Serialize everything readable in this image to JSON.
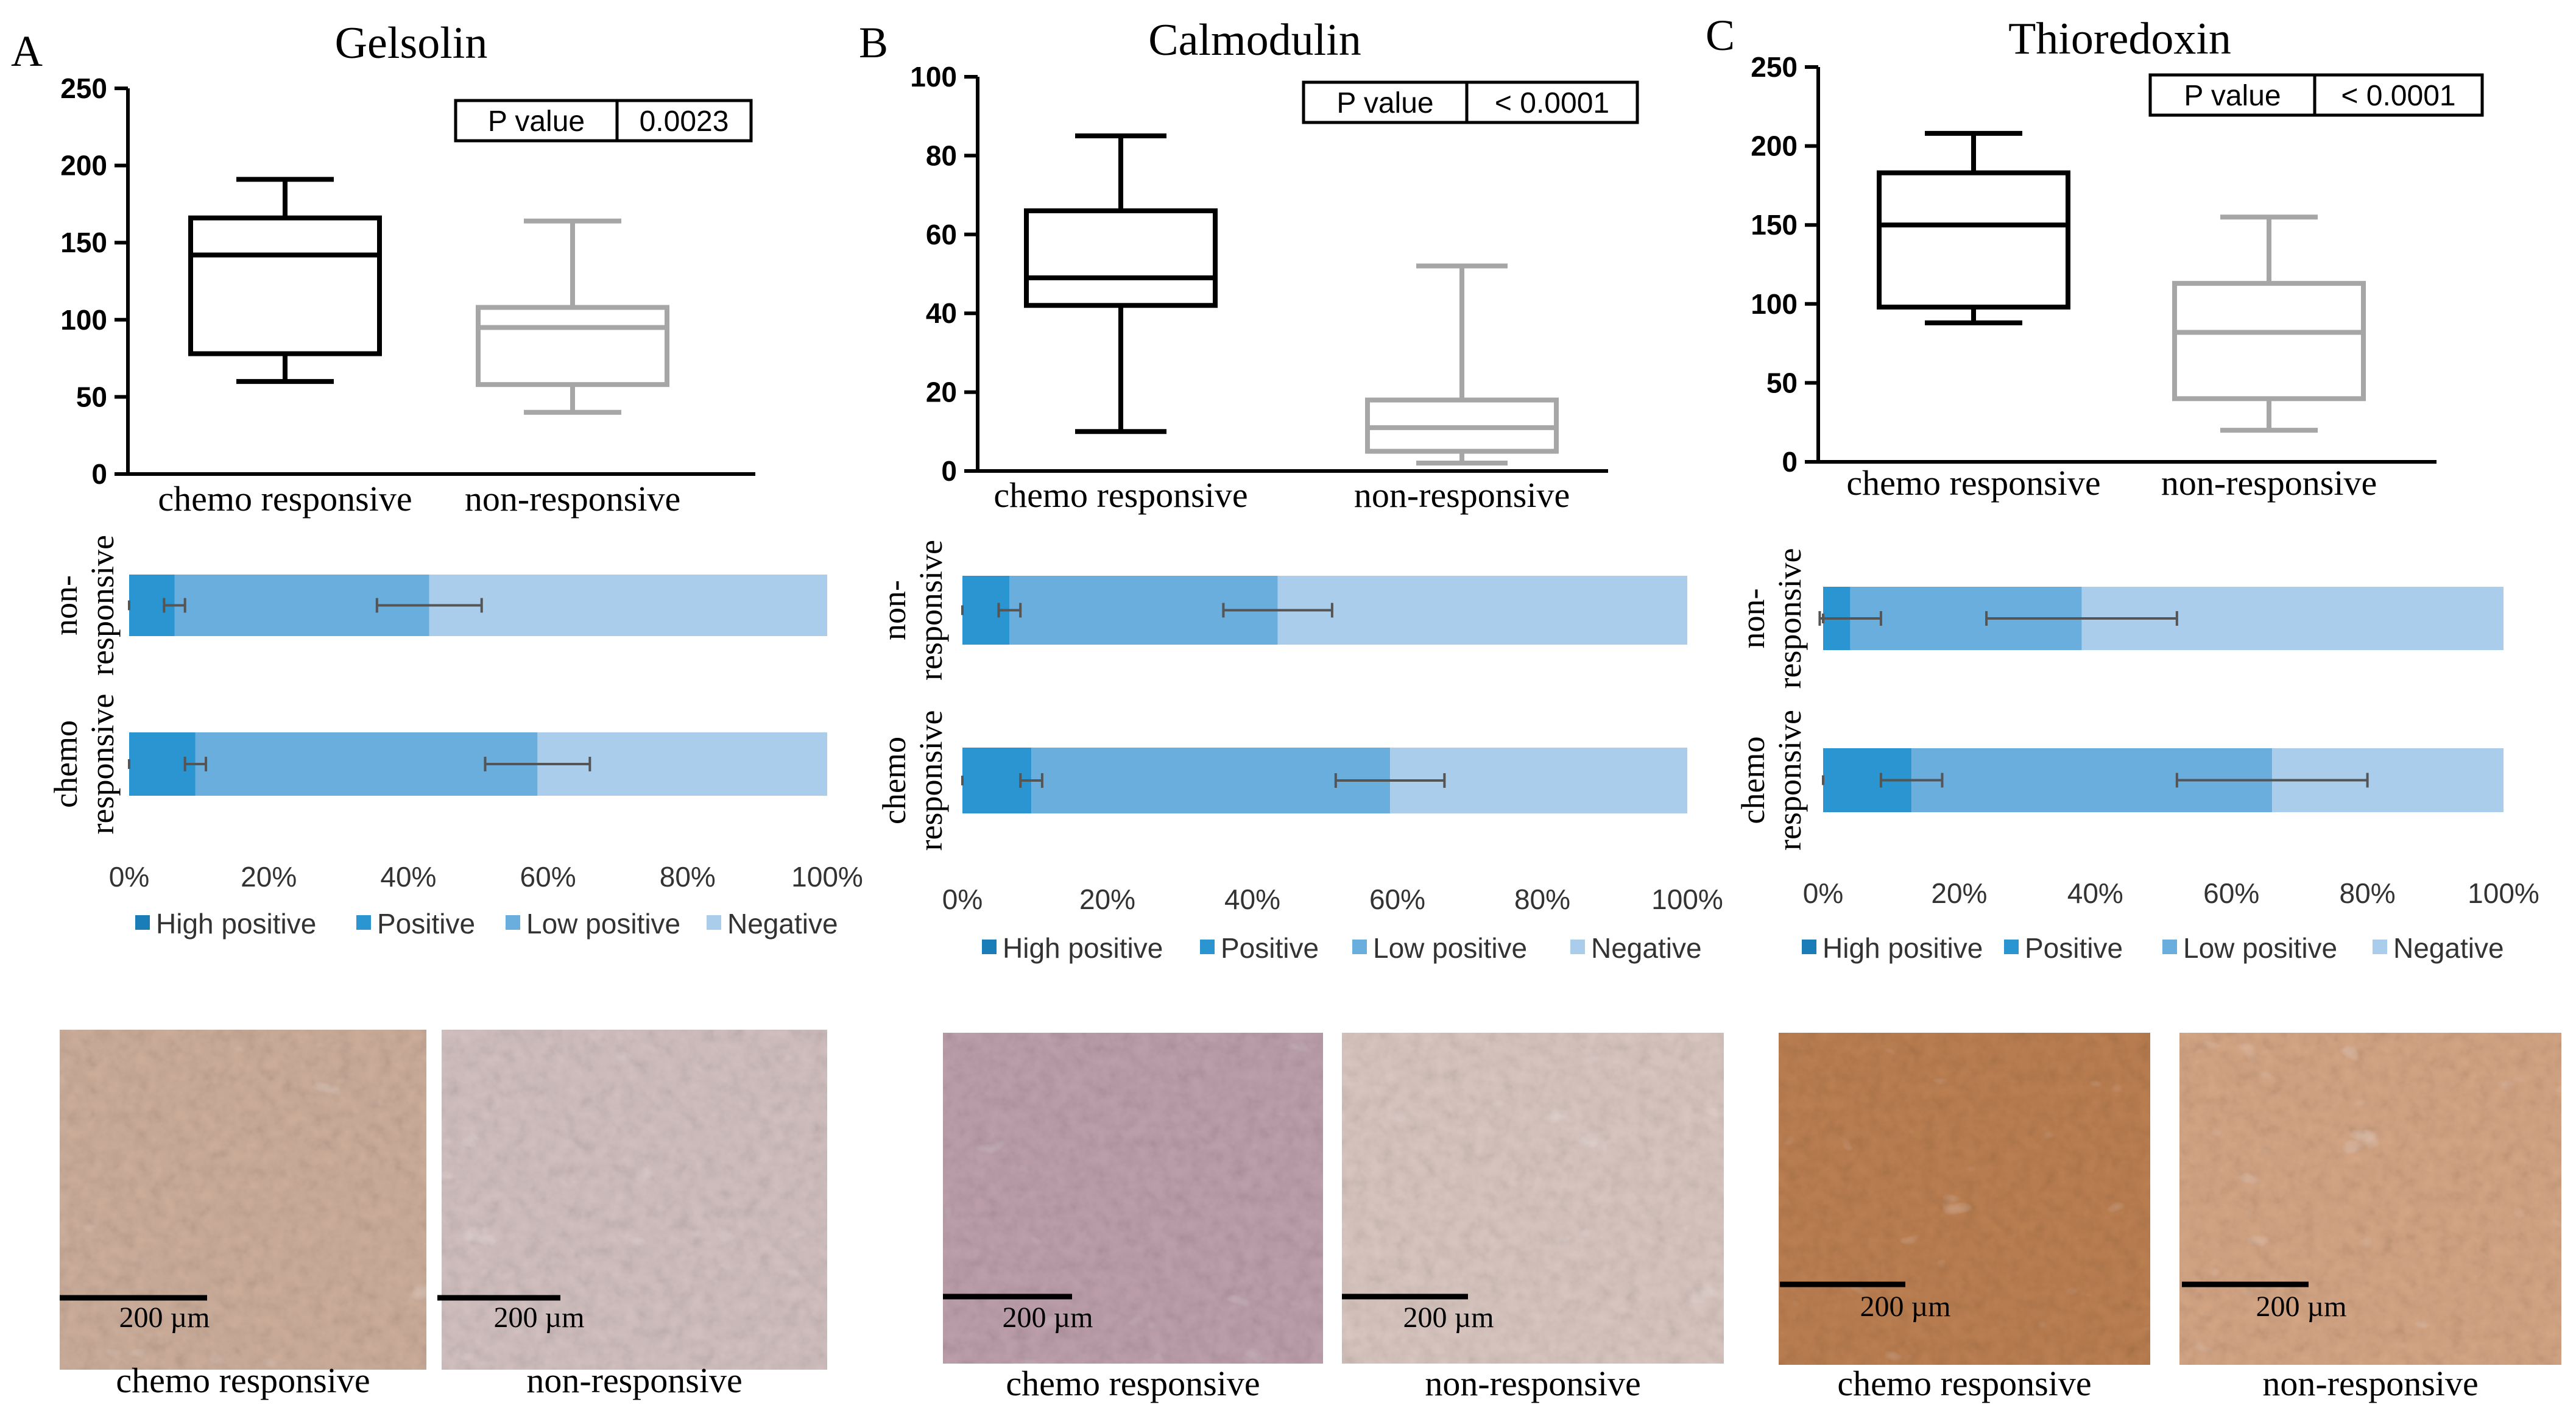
{
  "figure": {
    "scale_bar_label": "200 µm",
    "legend": {
      "items": [
        "High positive",
        "Positive",
        "Low positive",
        "Negative"
      ],
      "colors": [
        "#1a7db8",
        "#2a95d0",
        "#6aaede",
        "#aacdec"
      ]
    },
    "colors": {
      "responsive": "#000000",
      "nonresponsive": "#a6a6a6",
      "errorbar": "#555555"
    }
  },
  "chart_data": [
    {
      "panel": "A",
      "title": "Gelsolin",
      "type": "box",
      "ylim": [
        0,
        250
      ],
      "yticks": [
        0,
        50,
        100,
        150,
        200,
        250
      ],
      "categories": [
        "chemo responsive",
        "non-responsive"
      ],
      "boxes": [
        {
          "name": "chemo responsive",
          "min": 60,
          "q1": 78,
          "median": 142,
          "q3": 166,
          "max": 191
        },
        {
          "name": "non-responsive",
          "min": 40,
          "q1": 58,
          "median": 95,
          "q3": 108,
          "max": 164
        }
      ],
      "pvalue": {
        "label": "P value",
        "value": "0.0023"
      },
      "stacked_bar": {
        "type": "bar",
        "orientation": "horizontal",
        "stacked": true,
        "xticks": [
          "0%",
          "20%",
          "40%",
          "60%",
          "80%",
          "100%"
        ],
        "categories": [
          "non-responsive",
          "chemo responsive"
        ],
        "category_labels": [
          [
            "non-",
            "responsive"
          ],
          [
            "chemo",
            "responsive"
          ]
        ],
        "series": [
          {
            "name": "High positive",
            "values": [
              0,
              0
            ],
            "err": [
              0,
              0
            ]
          },
          {
            "name": "Positive",
            "values": [
              6.5,
              9.5
            ],
            "err": [
              1.5,
              1.5
            ]
          },
          {
            "name": "Low positive",
            "values": [
              36.5,
              49
            ],
            "err": [
              7.5,
              7.5
            ]
          },
          {
            "name": "Negative",
            "values": [
              57,
              41.5
            ],
            "err": [
              0,
              0
            ]
          }
        ]
      },
      "images": [
        {
          "caption": "chemo responsive"
        },
        {
          "caption": "non-responsive"
        }
      ]
    },
    {
      "panel": "B",
      "title": "Calmodulin",
      "type": "box",
      "ylim": [
        0,
        100
      ],
      "yticks": [
        0,
        20,
        40,
        60,
        80,
        100
      ],
      "categories": [
        "chemo responsive",
        "non-responsive"
      ],
      "boxes": [
        {
          "name": "chemo responsive",
          "min": 10,
          "q1": 42,
          "median": 49,
          "q3": 66,
          "max": 85
        },
        {
          "name": "non-responsive",
          "min": 2,
          "q1": 5,
          "median": 11,
          "q3": 18,
          "max": 52
        }
      ],
      "pvalue": {
        "label": "P value",
        "value": "< 0.0001"
      },
      "stacked_bar": {
        "type": "bar",
        "orientation": "horizontal",
        "stacked": true,
        "xticks": [
          "0%",
          "20%",
          "40%",
          "60%",
          "80%",
          "100%"
        ],
        "categories": [
          "non-responsive",
          "chemo responsive"
        ],
        "category_labels": [
          [
            "non-",
            "responsive"
          ],
          [
            "chemo",
            "responsive"
          ]
        ],
        "series": [
          {
            "name": "High positive",
            "values": [
              0,
              0
            ],
            "err": [
              0,
              0
            ]
          },
          {
            "name": "Positive",
            "values": [
              6.5,
              9.5
            ],
            "err": [
              1.5,
              1.5
            ]
          },
          {
            "name": "Low positive",
            "values": [
              37,
              49.5
            ],
            "err": [
              7.5,
              7.5
            ]
          },
          {
            "name": "Negative",
            "values": [
              56.5,
              41
            ],
            "err": [
              0,
              0
            ]
          }
        ]
      },
      "images": [
        {
          "caption": "chemo responsive"
        },
        {
          "caption": "non-responsive"
        }
      ]
    },
    {
      "panel": "C",
      "title": "Thioredoxin",
      "type": "box",
      "ylim": [
        0,
        250
      ],
      "yticks": [
        0,
        50,
        100,
        150,
        200,
        250
      ],
      "categories": [
        "chemo responsive",
        "non-responsive"
      ],
      "boxes": [
        {
          "name": "chemo responsive",
          "min": 88,
          "q1": 98,
          "median": 150,
          "q3": 183,
          "max": 208
        },
        {
          "name": "non-responsive",
          "min": 20,
          "q1": 40,
          "median": 82,
          "q3": 113,
          "max": 155
        }
      ],
      "pvalue": {
        "label": "P value",
        "value": "< 0.0001"
      },
      "stacked_bar": {
        "type": "bar",
        "orientation": "horizontal",
        "stacked": true,
        "xticks": [
          "0%",
          "20%",
          "40%",
          "60%",
          "80%",
          "100%"
        ],
        "categories": [
          "non-responsive",
          "chemo responsive"
        ],
        "category_labels": [
          [
            "non-",
            "responsive"
          ],
          [
            "chemo",
            "responsive"
          ]
        ],
        "series": [
          {
            "name": "High positive",
            "values": [
              0,
              0
            ],
            "err": [
              0,
              0
            ]
          },
          {
            "name": "Positive",
            "values": [
              4,
              13
            ],
            "err": [
              4.5,
              4.5
            ]
          },
          {
            "name": "Low positive",
            "values": [
              34,
              53
            ],
            "err": [
              14,
              14
            ]
          },
          {
            "name": "Negative",
            "values": [
              62,
              34
            ],
            "err": [
              0,
              0
            ]
          }
        ]
      },
      "images": [
        {
          "caption": "chemo responsive"
        },
        {
          "caption": "non-responsive"
        }
      ]
    }
  ]
}
